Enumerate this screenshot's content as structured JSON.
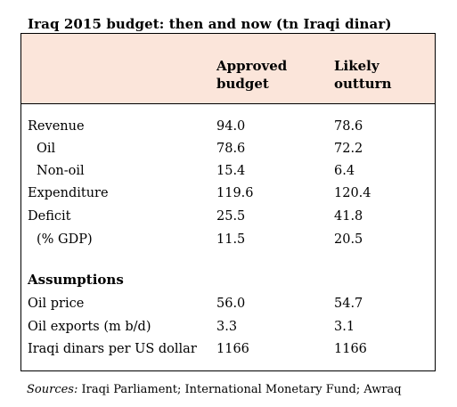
{
  "chart_data": {
    "type": "table",
    "title": "Iraq 2015 budget: then and now (tn Iraqi dinar)",
    "columns": [
      "Approved budget",
      "Likely outturn"
    ],
    "column_lines": [
      [
        "Approved",
        "budget"
      ],
      [
        "Likely",
        "outturn"
      ]
    ],
    "rows": [
      {
        "label": "Revenue",
        "approved": "94.0",
        "outturn": "78.6"
      },
      {
        "label": "Oil",
        "approved": "78.6",
        "outturn": "72.2"
      },
      {
        "label": "Non-oil",
        "approved": "15.4",
        "outturn": "6.4"
      },
      {
        "label": "Expenditure",
        "approved": "119.6",
        "outturn": "120.4"
      },
      {
        "label": "Deficit",
        "approved": "25.5",
        "outturn": "41.8"
      },
      {
        "label": "(% GDP)",
        "approved": "11.5",
        "outturn": "20.5"
      }
    ],
    "section_label": "Assumptions",
    "assumption_rows": [
      {
        "label": "Oil price",
        "approved": "56.0",
        "outturn": "54.7"
      },
      {
        "label": "Oil exports (m b/d)",
        "approved": "3.3",
        "outturn": "3.1"
      },
      {
        "label": "Iraqi dinars per US dollar",
        "approved": "1166",
        "outturn": "1166"
      }
    ],
    "source_label": "Sources:",
    "source_text": "Iraqi Parliament; International Monetary Fund; Awraq",
    "header_color": "#fbe5da"
  }
}
